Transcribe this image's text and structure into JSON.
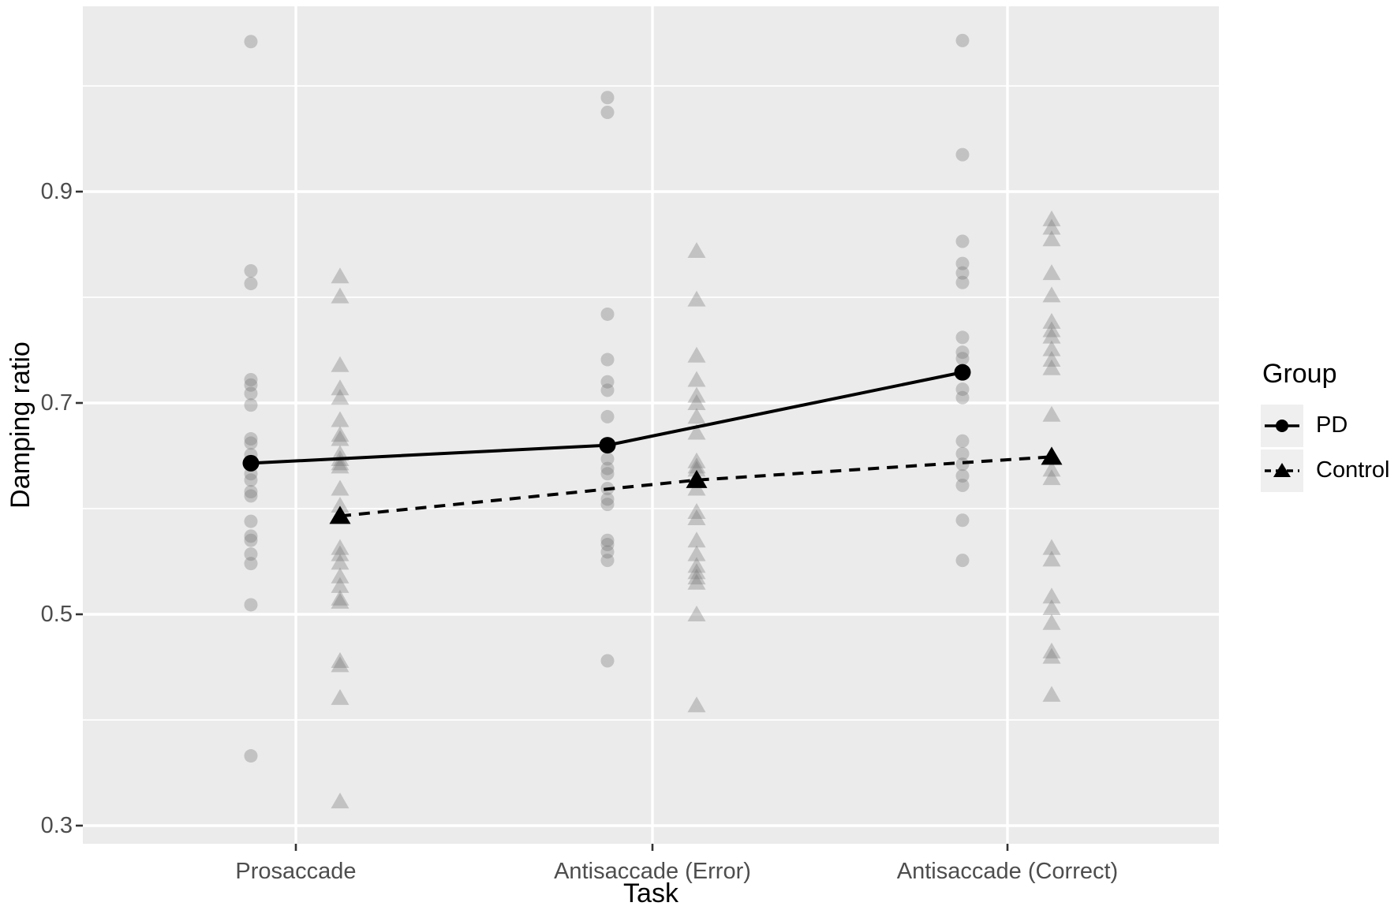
{
  "chart_data": {
    "type": "scatter",
    "subtype": "interaction-plot: jittered individual points with group mean lines",
    "title": "",
    "xlabel": "Task",
    "ylabel": "Damping ratio",
    "categories": [
      "Prosaccade",
      "Antisaccade (Error)",
      "Antisaccade (Correct)"
    ],
    "y_axis": {
      "major_ticks": [
        0.9,
        0.7,
        0.5,
        0.3
      ],
      "minor_gridlines": [
        1.0,
        0.8,
        0.6,
        0.4
      ],
      "range": [
        0.283,
        1.075
      ],
      "tick_decimals": 1
    },
    "grid": "on",
    "legend": {
      "title": "Group",
      "position": "right",
      "entries": [
        {
          "label": "PD",
          "marker": "circle",
          "line": "solid"
        },
        {
          "label": "Control",
          "marker": "triangle",
          "line": "dashed"
        }
      ]
    },
    "series": [
      {
        "name": "PD",
        "marker": "circle",
        "line": "solid",
        "means": [
          0.643,
          0.66,
          0.729
        ],
        "points": [
          [
            1.042,
            0.825,
            0.813,
            0.722,
            0.717,
            0.709,
            0.698,
            0.666,
            0.662,
            0.651,
            0.633,
            0.627,
            0.616,
            0.612,
            0.588,
            0.574,
            0.57,
            0.557,
            0.548,
            0.509,
            0.366
          ],
          [
            0.989,
            0.975,
            0.784,
            0.741,
            0.72,
            0.712,
            0.687,
            0.647,
            0.638,
            0.633,
            0.619,
            0.609,
            0.604,
            0.57,
            0.566,
            0.559,
            0.551,
            0.456
          ],
          [
            1.043,
            0.935,
            0.853,
            0.832,
            0.823,
            0.814,
            0.762,
            0.748,
            0.742,
            0.713,
            0.705,
            0.664,
            0.652,
            0.642,
            0.631,
            0.622,
            0.589,
            0.551
          ]
        ]
      },
      {
        "name": "Control",
        "marker": "triangle",
        "line": "dashed",
        "means": [
          0.593,
          0.627,
          0.649
        ],
        "points": [
          [
            0.82,
            0.801,
            0.736,
            0.714,
            0.705,
            0.684,
            0.67,
            0.666,
            0.652,
            0.647,
            0.643,
            0.64,
            0.619,
            0.603,
            0.563,
            0.557,
            0.549,
            0.536,
            0.527,
            0.515,
            0.512,
            0.456,
            0.452,
            0.421,
            0.323
          ],
          [
            0.844,
            0.798,
            0.745,
            0.722,
            0.707,
            0.7,
            0.687,
            0.672,
            0.645,
            0.64,
            0.637,
            0.619,
            0.597,
            0.591,
            0.57,
            0.557,
            0.546,
            0.54,
            0.535,
            0.53,
            0.5,
            0.414
          ],
          [
            0.874,
            0.866,
            0.855,
            0.823,
            0.802,
            0.777,
            0.769,
            0.763,
            0.751,
            0.741,
            0.733,
            0.689,
            0.637,
            0.629,
            0.563,
            0.552,
            0.517,
            0.506,
            0.492,
            0.465,
            0.46,
            0.424
          ]
        ]
      }
    ],
    "style": {
      "panel_bg": "#ebebeb",
      "grid_color": "#ffffff",
      "point_color": "rgba(118,118,118,0.35)",
      "mean_color": "#000000",
      "tick_mark_color": "#333333",
      "tick_label_color": "#4d4d4d",
      "axis_title_color": "#000000",
      "legend_key_bg": "#efefef"
    }
  }
}
